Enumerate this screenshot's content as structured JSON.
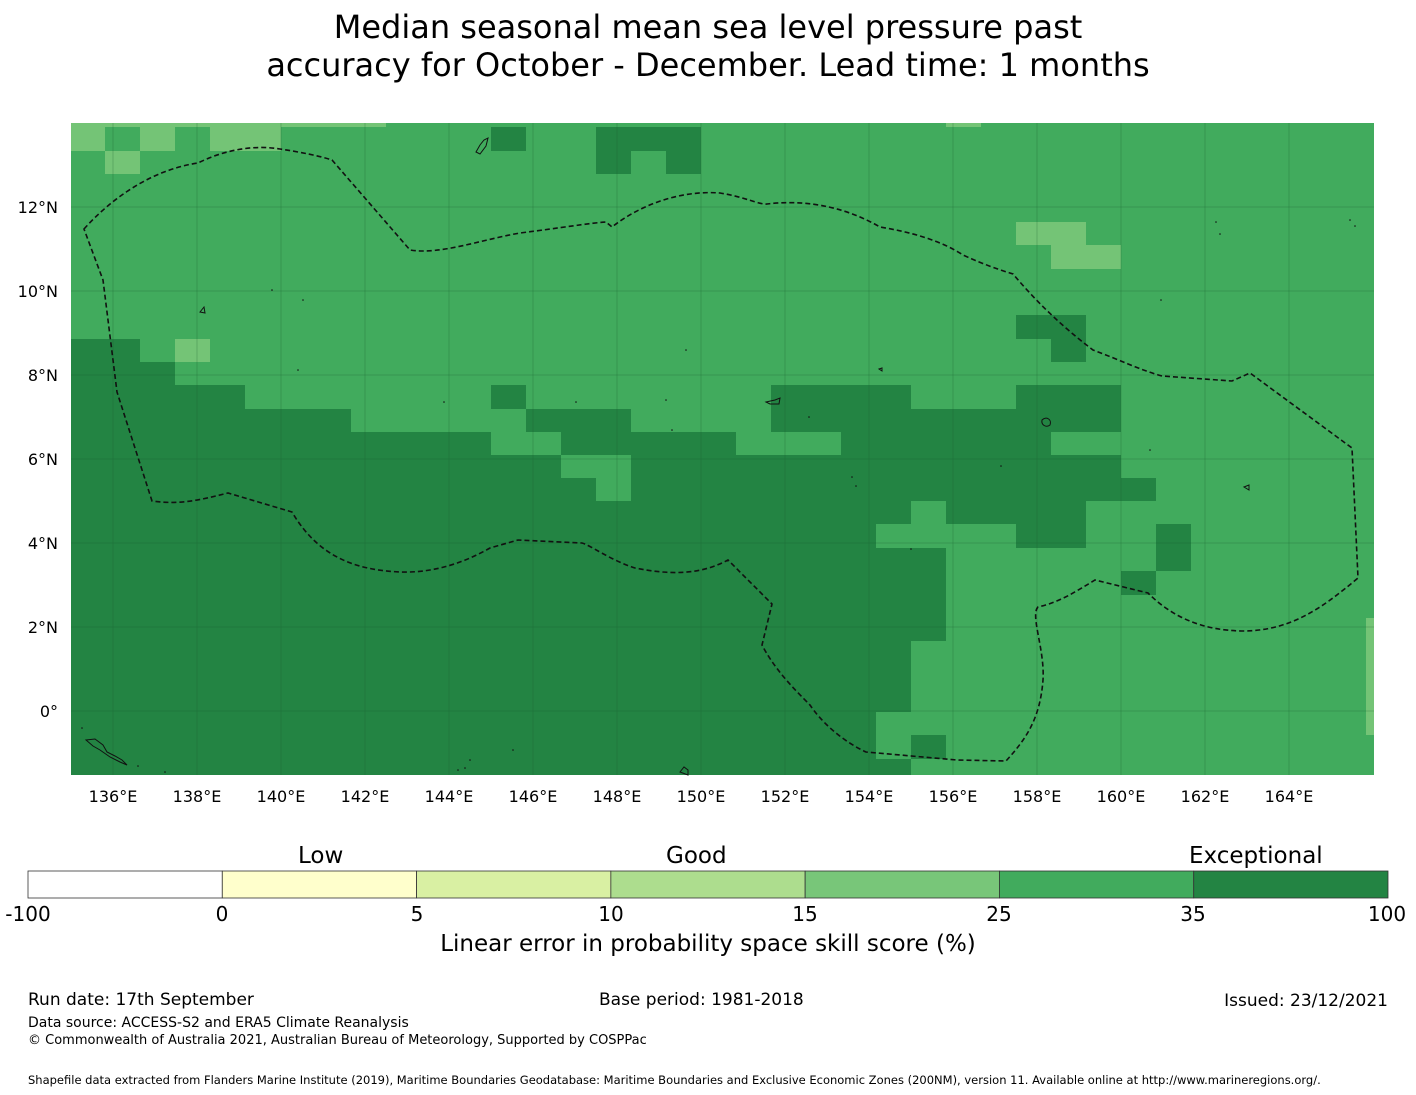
{
  "title": {
    "line1": "Median seasonal mean sea level pressure past",
    "line2": "accuracy for October - December. Lead time: 1 months"
  },
  "map": {
    "lon_labels": [
      "136°E",
      "138°E",
      "140°E",
      "142°E",
      "144°E",
      "146°E",
      "148°E",
      "150°E",
      "152°E",
      "154°E",
      "156°E",
      "158°E",
      "160°E",
      "162°E",
      "164°E"
    ],
    "lat_labels": [
      "12°N",
      "10°N",
      "8°N",
      "6°N",
      "4°N",
      "2°N",
      "0°"
    ],
    "lon_values": [
      136,
      138,
      140,
      142,
      144,
      146,
      148,
      150,
      152,
      154,
      156,
      158,
      160,
      162,
      164
    ],
    "lat_values": [
      12,
      10,
      8,
      6,
      4,
      2,
      0
    ],
    "lon_range": [
      135,
      166
    ],
    "lat_range": [
      -1.5,
      14
    ],
    "grid_on": true,
    "boundary": "dashed",
    "colors": {
      "s15_25": "#74c476",
      "s25_35": "#41ab5d",
      "s35_100": "#238443"
    }
  },
  "legend": {
    "categories": [
      "Low",
      "Good",
      "Exceptional"
    ],
    "ticks": [
      "-100",
      "0",
      "5",
      "10",
      "15",
      "25",
      "35",
      "100"
    ],
    "colors": [
      "#ffffff",
      "#ffffcc",
      "#d9f0a3",
      "#addd8e",
      "#78c679",
      "#41ab5d",
      "#238443"
    ],
    "label": "Linear error in probability space skill score (%)"
  },
  "footer": {
    "run_date": "Run date: 17th September",
    "base_period": "Base period: 1981-2018",
    "issued": "Issued: 23/12/2021",
    "data_source": "Data source: ACCESS-S2 and ERA5 Climate Reanalysis",
    "copyright": "© Commonwealth of Australia 2021, Australian Bureau of Meteorology, Supported by COSPPac",
    "shapefile": "Shapefile data extracted from Flanders Marine Institute (2019), Maritime Boundaries Geodatabase: Maritime Boundaries and Exclusive Economic Zones (200NM), version 11. Available online at http://www.marineregions.org/."
  }
}
